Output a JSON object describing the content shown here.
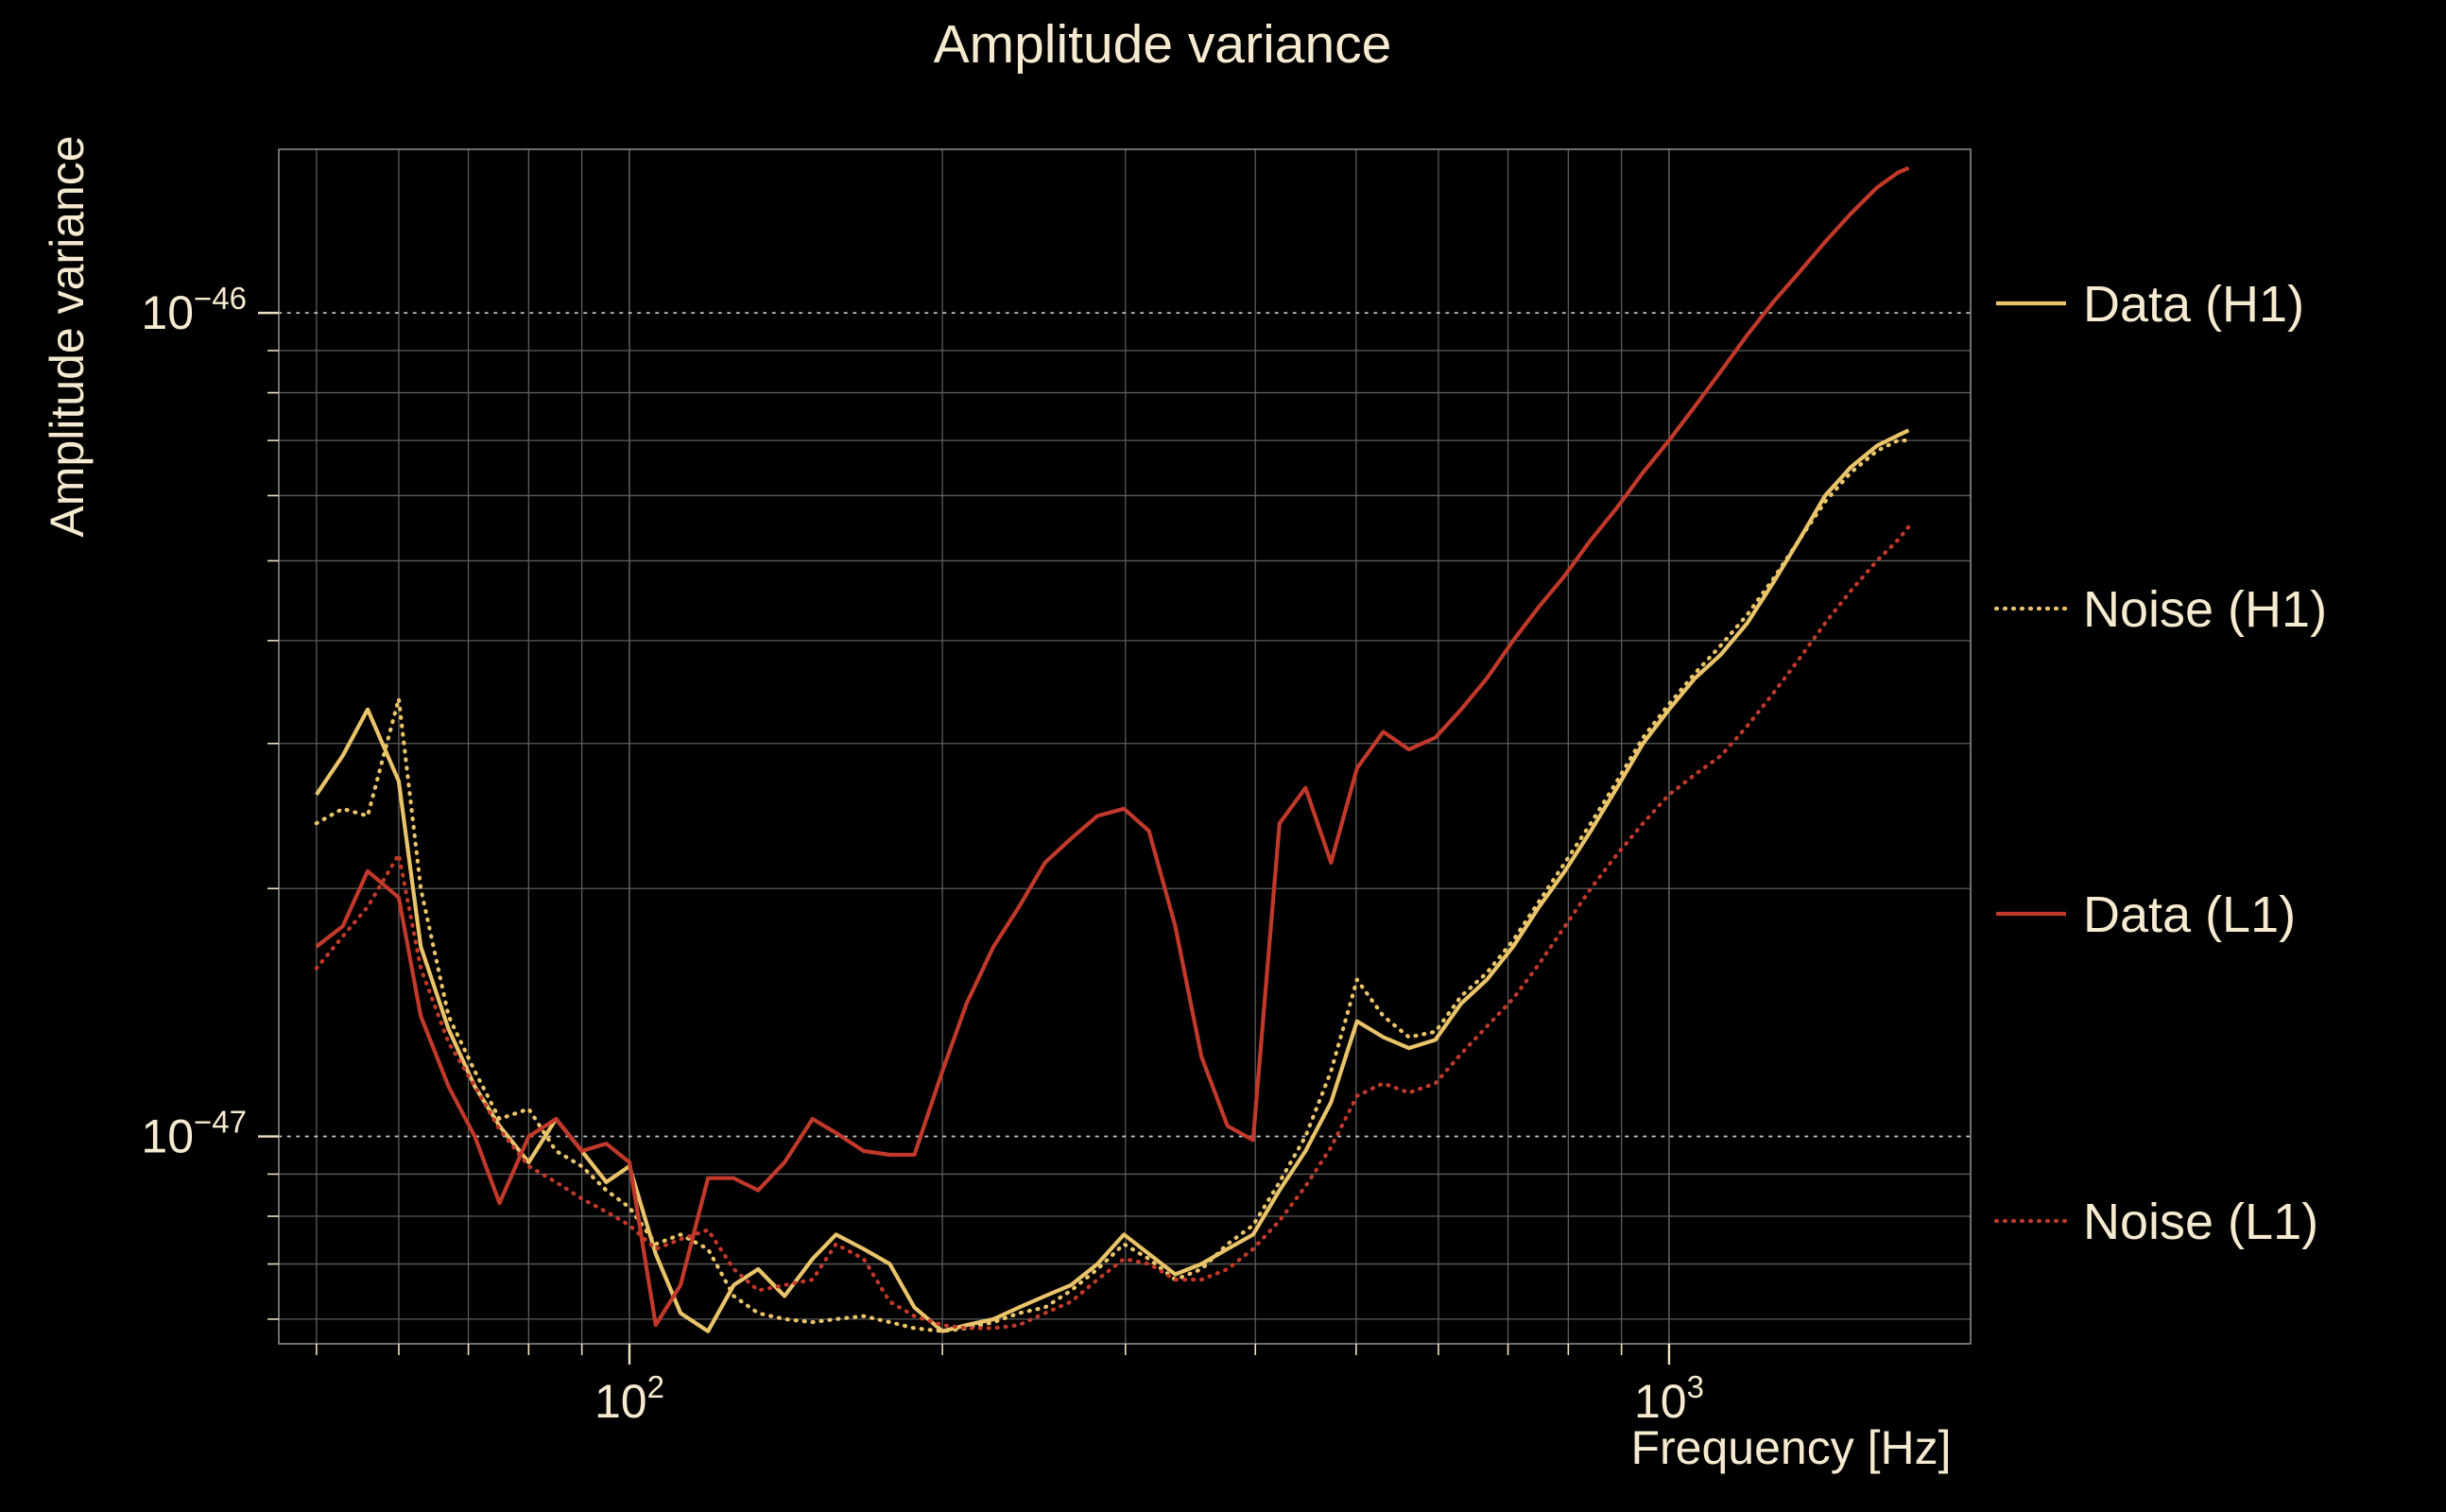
{
  "chart_data": {
    "type": "line",
    "title": "Amplitude variance",
    "xlabel": "Frequency [Hz]",
    "ylabel": "Amplitude variance",
    "xscale": "log",
    "yscale": "log",
    "xlim": [
      46,
      1950
    ],
    "ylim": [
      5.6e-48,
      1.58e-46
    ],
    "grid": true,
    "legend_position": "right-outside",
    "x_major_ticks": [
      {
        "value": 100,
        "label": "10^2"
      },
      {
        "value": 1000,
        "label": "10^3"
      }
    ],
    "x_minor_ticks": [
      50,
      60,
      70,
      80,
      90,
      200,
      300,
      400,
      500,
      600,
      700,
      800,
      900
    ],
    "y_major_ticks": [
      {
        "value_e48": 10,
        "label": "10^−47"
      },
      {
        "value_e48": 100,
        "label": "10^−46"
      }
    ],
    "y_minor_ticks_e48": [
      6,
      7,
      8,
      9,
      20,
      30,
      40,
      50,
      60,
      70,
      80,
      90
    ],
    "y_unit_exponent": -48,
    "frequencies_hz": [
      50,
      53,
      56,
      60,
      63,
      67,
      71,
      75,
      80,
      85,
      90,
      95,
      100,
      106,
      112,
      119,
      126,
      133,
      141,
      150,
      158,
      168,
      178,
      188,
      200,
      211,
      224,
      237,
      251,
      266,
      282,
      299,
      316,
      335,
      355,
      376,
      398,
      422,
      447,
      473,
      501,
      531,
      562,
      596,
      631,
      668,
      708,
      750,
      794,
      841,
      891,
      944,
      1000,
      1059,
      1122,
      1189,
      1259,
      1334,
      1413,
      1496,
      1585,
      1660,
      1700
    ],
    "series": [
      {
        "name": "Data (H1)",
        "color": "#e9c46a",
        "style": "solid",
        "values_e48": [
          26,
          29,
          33,
          27,
          17,
          13.5,
          11.5,
          10.3,
          9.3,
          10.5,
          9.6,
          8.8,
          9.2,
          7.2,
          6.1,
          5.8,
          6.6,
          6.9,
          6.4,
          7.1,
          7.6,
          7.3,
          7.0,
          6.2,
          5.8,
          5.9,
          6.0,
          6.2,
          6.4,
          6.6,
          7.0,
          7.6,
          7.2,
          6.8,
          7.0,
          7.3,
          7.6,
          8.6,
          9.6,
          11,
          13.8,
          13.2,
          12.8,
          13.1,
          14.5,
          15.5,
          17,
          19,
          21,
          23.5,
          26.5,
          30,
          33,
          36,
          38.5,
          42,
          47,
          53,
          60,
          65,
          69,
          71,
          72
        ]
      },
      {
        "name": "Noise (H1)",
        "color": "#e9c46a",
        "style": "dotted",
        "values_e48": [
          24,
          25,
          24.5,
          34,
          20,
          14,
          12,
          10.5,
          10.8,
          9.6,
          9.2,
          8.6,
          8.2,
          7.4,
          7.6,
          7.3,
          6.4,
          6.1,
          6.0,
          5.95,
          6.0,
          6.05,
          5.95,
          5.85,
          5.8,
          5.85,
          5.95,
          6.1,
          6.2,
          6.5,
          6.9,
          7.4,
          7.1,
          6.7,
          6.9,
          7.4,
          7.8,
          8.8,
          10,
          12,
          15.5,
          14,
          13.2,
          13.4,
          14.8,
          15.8,
          17.3,
          19.3,
          21.5,
          24,
          27,
          30.5,
          33.5,
          36.5,
          39.5,
          43,
          47.5,
          53,
          59,
          64,
          68,
          70,
          70
        ]
      },
      {
        "name": "Data (L1)",
        "color": "#c0392b",
        "style": "solid",
        "values_e48": [
          17,
          18,
          21,
          19.5,
          14,
          11.5,
          10,
          8.3,
          10,
          10.5,
          9.6,
          9.8,
          9.3,
          5.9,
          6.6,
          8.9,
          8.9,
          8.6,
          9.3,
          10.5,
          10.1,
          9.6,
          9.5,
          9.5,
          12,
          14.5,
          17,
          19,
          21.5,
          23,
          24.5,
          25,
          23.5,
          18,
          12.5,
          10.3,
          9.9,
          24,
          26.5,
          21.5,
          28,
          31,
          29.5,
          30.5,
          33,
          36,
          40,
          44,
          48,
          53,
          58,
          64,
          70,
          77,
          85,
          94,
          103,
          112,
          122,
          132,
          142,
          148,
          150
        ]
      },
      {
        "name": "Noise (L1)",
        "color": "#c0392b",
        "style": "dotted",
        "values_e48": [
          16,
          17.5,
          19,
          22,
          16,
          13,
          11.5,
          10.2,
          9.2,
          8.8,
          8.4,
          8.1,
          7.8,
          7.3,
          7.5,
          7.7,
          6.9,
          6.5,
          6.6,
          6.7,
          7.4,
          7.1,
          6.3,
          6.05,
          5.9,
          5.85,
          5.85,
          5.9,
          6.1,
          6.3,
          6.7,
          7.1,
          7.0,
          6.7,
          6.7,
          6.9,
          7.3,
          7.9,
          8.7,
          9.7,
          11.2,
          11.6,
          11.3,
          11.6,
          12.6,
          13.6,
          14.7,
          16.2,
          18,
          20,
          22,
          24,
          26,
          27.5,
          29,
          31.5,
          34.5,
          38,
          42,
          46,
          50,
          53,
          55
        ]
      }
    ]
  },
  "colors": {
    "background": "#000000",
    "text": "#f6ead0",
    "tick": "#f0e2c2",
    "grid_minor": "#5c5c5c",
    "grid_major": "#d8d8d8",
    "frame": "#8a8a8a"
  }
}
